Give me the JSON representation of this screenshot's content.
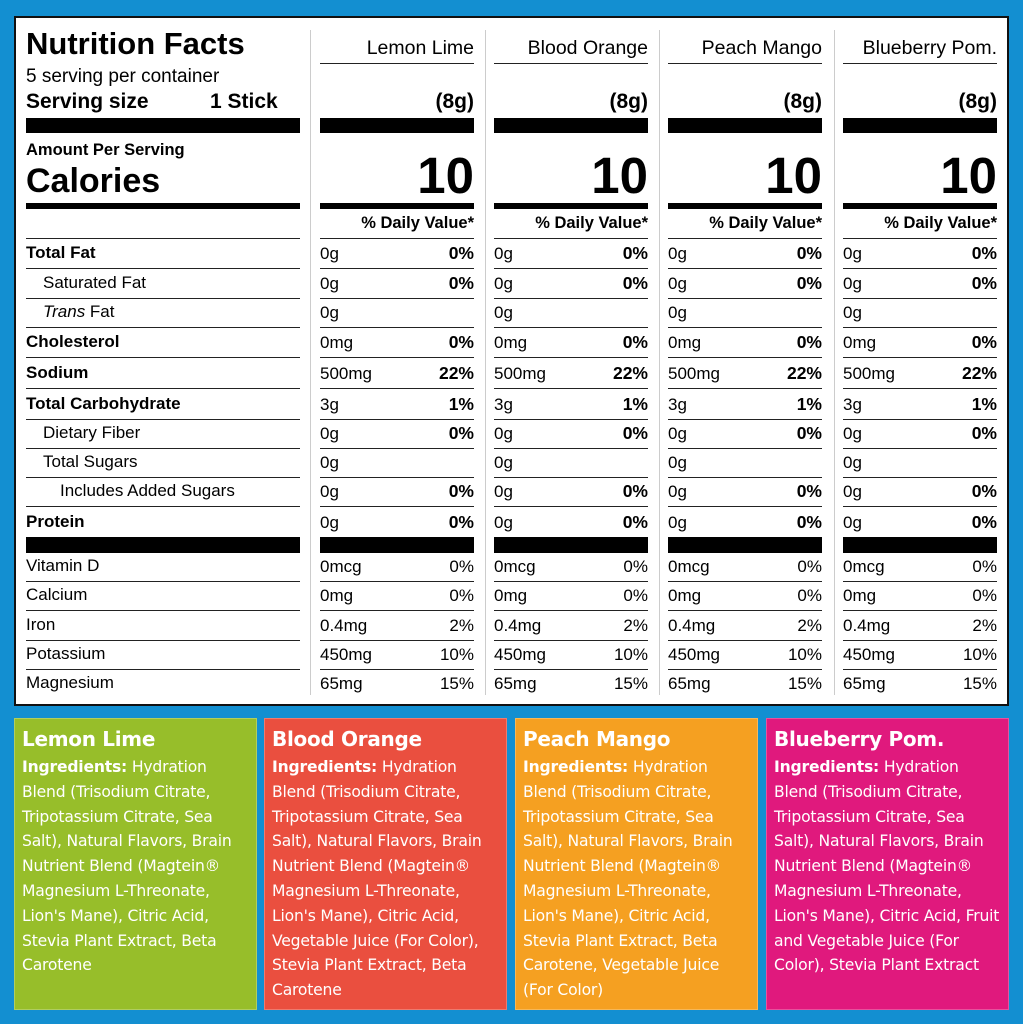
{
  "label": {
    "title": "Nutrition Facts",
    "servings": "5 serving per container",
    "serving_size_label": "Serving size",
    "serving_size_value": "1 Stick",
    "amount_per_serving": "Amount Per Serving",
    "calories_label": "Calories",
    "daily_value_header": "% Daily Value*"
  },
  "nutrients": [
    {
      "label": "Total Fat",
      "bold": true,
      "indent": 0
    },
    {
      "label": "Saturated Fat",
      "bold": false,
      "indent": 1
    },
    {
      "label_italic": "Trans",
      "label": " Fat",
      "bold": false,
      "indent": 1
    },
    {
      "label": "Cholesterol",
      "bold": true,
      "indent": 0
    },
    {
      "label": "Sodium",
      "bold": true,
      "indent": 0
    },
    {
      "label": "Total Carbohydrate",
      "bold": true,
      "indent": 0
    },
    {
      "label": "Dietary Fiber",
      "bold": false,
      "indent": 1
    },
    {
      "label": "Total Sugars",
      "bold": false,
      "indent": 1
    },
    {
      "label": "Includes Added Sugars",
      "bold": false,
      "indent": 2
    },
    {
      "label": "Protein",
      "bold": true,
      "indent": 0
    }
  ],
  "vitamins": [
    {
      "label": "Vitamin D"
    },
    {
      "label": "Calcium"
    },
    {
      "label": "Iron"
    },
    {
      "label": "Potassium"
    },
    {
      "label": "Magnesium"
    }
  ],
  "flavors": [
    {
      "name": "Lemon Lime",
      "serving": "(8g)",
      "calories": "10",
      "color": "#97be2a",
      "nutrients": [
        [
          "0g",
          "0%"
        ],
        [
          "0g",
          "0%"
        ],
        [
          "0g",
          ""
        ],
        [
          "0mg",
          "0%"
        ],
        [
          "500mg",
          "22%"
        ],
        [
          "3g",
          "1%"
        ],
        [
          "0g",
          "0%"
        ],
        [
          "0g",
          ""
        ],
        [
          "0g",
          "0%"
        ],
        [
          "0g",
          "0%"
        ]
      ],
      "vitamins": [
        [
          "0mcg",
          "0%"
        ],
        [
          "0mg",
          "0%"
        ],
        [
          "0.4mg",
          "2%"
        ],
        [
          "450mg",
          "10%"
        ],
        [
          "65mg",
          "15%"
        ]
      ],
      "ingredients_label": "Ingredients:",
      "ingredients": " Hydration Blend (Trisodium Citrate, Tripotassium Citrate, Sea Salt), Natural Flavors, Brain Nutrient Blend (Magtein® Magnesium L-Threonate, Lion's Mane), Citric Acid, Stevia Plant Extract, Beta Carotene"
    },
    {
      "name": "Blood Orange",
      "serving": "(8g)",
      "calories": "10",
      "color": "#ea4f3f",
      "nutrients": [
        [
          "0g",
          "0%"
        ],
        [
          "0g",
          "0%"
        ],
        [
          "0g",
          ""
        ],
        [
          "0mg",
          "0%"
        ],
        [
          "500mg",
          "22%"
        ],
        [
          "3g",
          "1%"
        ],
        [
          "0g",
          "0%"
        ],
        [
          "0g",
          ""
        ],
        [
          "0g",
          "0%"
        ],
        [
          "0g",
          "0%"
        ]
      ],
      "vitamins": [
        [
          "0mcg",
          "0%"
        ],
        [
          "0mg",
          "0%"
        ],
        [
          "0.4mg",
          "2%"
        ],
        [
          "450mg",
          "10%"
        ],
        [
          "65mg",
          "15%"
        ]
      ],
      "ingredients_label": "Ingredients:",
      "ingredients": " Hydration Blend (Trisodium Citrate, Tripotassium Citrate, Sea Salt), Natural Flavors, Brain Nutrient Blend (Magtein® Magnesium L-Threonate, Lion's Mane), Citric Acid, Vegetable Juice (For Color), Stevia Plant Extract, Beta Carotene"
    },
    {
      "name": "Peach Mango",
      "serving": "(8g)",
      "calories": "10",
      "color": "#f5a021",
      "nutrients": [
        [
          "0g",
          "0%"
        ],
        [
          "0g",
          "0%"
        ],
        [
          "0g",
          ""
        ],
        [
          "0mg",
          "0%"
        ],
        [
          "500mg",
          "22%"
        ],
        [
          "3g",
          "1%"
        ],
        [
          "0g",
          "0%"
        ],
        [
          "0g",
          ""
        ],
        [
          "0g",
          "0%"
        ],
        [
          "0g",
          "0%"
        ]
      ],
      "vitamins": [
        [
          "0mcg",
          "0%"
        ],
        [
          "0mg",
          "0%"
        ],
        [
          "0.4mg",
          "2%"
        ],
        [
          "450mg",
          "10%"
        ],
        [
          "65mg",
          "15%"
        ]
      ],
      "ingredients_label": "Ingredients:",
      "ingredients": " Hydration Blend (Trisodium Citrate, Tripotassium Citrate, Sea Salt), Natural Flavors, Brain Nutrient Blend (Magtein® Magnesium L-Threonate, Lion's Mane), Citric Acid, Stevia Plant Extract, Beta Carotene, Vegetable Juice (For Color)"
    },
    {
      "name": "Blueberry Pom.",
      "serving": "(8g)",
      "calories": "10",
      "color": "#e0197d",
      "nutrients": [
        [
          "0g",
          "0%"
        ],
        [
          "0g",
          "0%"
        ],
        [
          "0g",
          ""
        ],
        [
          "0mg",
          "0%"
        ],
        [
          "500mg",
          "22%"
        ],
        [
          "3g",
          "1%"
        ],
        [
          "0g",
          "0%"
        ],
        [
          "0g",
          ""
        ],
        [
          "0g",
          "0%"
        ],
        [
          "0g",
          "0%"
        ]
      ],
      "vitamins": [
        [
          "0mcg",
          "0%"
        ],
        [
          "0mg",
          "0%"
        ],
        [
          "0.4mg",
          "2%"
        ],
        [
          "450mg",
          "10%"
        ],
        [
          "65mg",
          "15%"
        ]
      ],
      "ingredients_label": "Ingredients:",
      "ingredients": " Hydration Blend (Trisodium Citrate, Tripotassium Citrate, Sea Salt), Natural Flavors, Brain Nutrient Blend (Magtein® Magnesium L-Threonate, Lion's Mane), Citric Acid, Fruit and Vegetable Juice (For Color), Stevia Plant Extract"
    }
  ]
}
